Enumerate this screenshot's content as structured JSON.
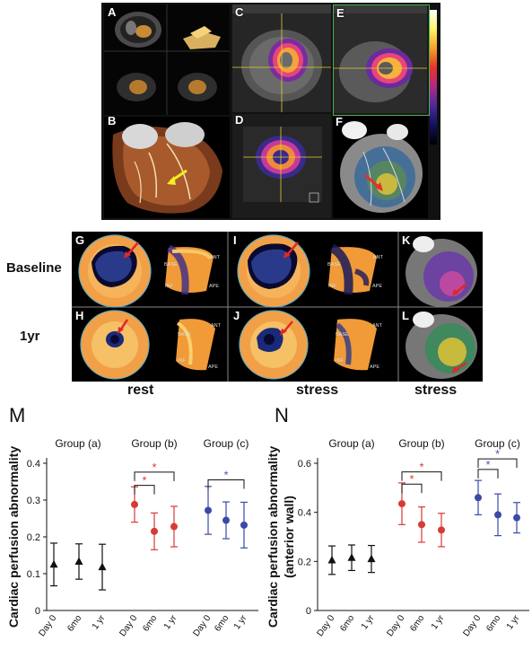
{
  "top_panels": {
    "letters": [
      "A",
      "B",
      "C",
      "D",
      "E",
      "F"
    ]
  },
  "bullseye_panels": {
    "letters": [
      "G",
      "H",
      "I",
      "J",
      "K",
      "L"
    ],
    "row_labels": [
      "Baseline",
      "1yr"
    ],
    "column_labels": [
      "rest",
      "stress",
      "stress"
    ],
    "polar_labels": {
      "base": "BASE",
      "ant": "ANT",
      "inf": "INF",
      "ape": "APE"
    }
  },
  "colors": {
    "group_a": "#111111",
    "group_b": "#d83a35",
    "group_c": "#3a4aa8",
    "significance": "#d83a35",
    "significance_c": "#4a5ab8"
  },
  "chart_data": [
    {
      "panel_letter": "M",
      "type": "scatter",
      "ylabel": "Cardiac perfusion  abnormality",
      "ylim": [
        0,
        0.4
      ],
      "yticks": [
        "0",
        "0.1",
        "0.2",
        "0.3",
        "0.4"
      ],
      "groups": [
        {
          "name": "Group (a)",
          "categories": [
            "Day 0",
            "6mo",
            "1 yr"
          ],
          "values": [
            0.125,
            0.133,
            0.118
          ],
          "errors": [
            0.058,
            0.048,
            0.062
          ],
          "marker": "triangle",
          "color": "#111111"
        },
        {
          "name": "Group (b)",
          "categories": [
            "Day 0",
            "6mo",
            "1 yr"
          ],
          "values": [
            0.288,
            0.215,
            0.228
          ],
          "errors": [
            0.048,
            0.05,
            0.055
          ],
          "marker": "circle",
          "color": "#d83a35"
        },
        {
          "name": "Group (c)",
          "categories": [
            "Day 0",
            "6mo",
            "1 yr"
          ],
          "values": [
            0.272,
            0.245,
            0.232
          ],
          "errors": [
            0.065,
            0.05,
            0.062
          ],
          "marker": "circle",
          "color": "#3a4aa8"
        }
      ],
      "significance": [
        {
          "group": 1,
          "from": 0,
          "to": 1,
          "level": 0.34,
          "label": "*",
          "color": "#d83a35"
        },
        {
          "group": 1,
          "from": 0,
          "to": 2,
          "level": 0.376,
          "label": "*",
          "color": "#d83a35"
        },
        {
          "group": 2,
          "from": 0,
          "to": 2,
          "level": 0.355,
          "label": "*",
          "color": "#4a5ab8"
        }
      ]
    },
    {
      "panel_letter": "N",
      "type": "scatter",
      "ylabel": "Cardiac perfusion  abnormality\n(anterior wall)",
      "ylim": [
        0,
        0.6
      ],
      "yticks": [
        "0",
        "0.2",
        "0.4",
        "0.6"
      ],
      "groups": [
        {
          "name": "Group (a)",
          "categories": [
            "Day 0",
            "6mo",
            "1 yr"
          ],
          "values": [
            0.205,
            0.215,
            0.21
          ],
          "errors": [
            0.058,
            0.052,
            0.055
          ],
          "marker": "triangle",
          "color": "#111111"
        },
        {
          "name": "Group (b)",
          "categories": [
            "Day 0",
            "6mo",
            "1 yr"
          ],
          "values": [
            0.435,
            0.35,
            0.328
          ],
          "errors": [
            0.085,
            0.072,
            0.068
          ],
          "marker": "circle",
          "color": "#d83a35"
        },
        {
          "name": "Group (c)",
          "categories": [
            "Day 0",
            "6mo",
            "1 yr"
          ],
          "values": [
            0.46,
            0.39,
            0.378
          ],
          "errors": [
            0.07,
            0.085,
            0.062
          ],
          "marker": "circle",
          "color": "#3a4aa8"
        }
      ],
      "significance": [
        {
          "group": 1,
          "from": 0,
          "to": 1,
          "level": 0.515,
          "label": "*",
          "color": "#d83a35"
        },
        {
          "group": 1,
          "from": 0,
          "to": 2,
          "level": 0.565,
          "label": "*",
          "color": "#d83a35"
        },
        {
          "group": 2,
          "from": 0,
          "to": 1,
          "level": 0.575,
          "label": "*",
          "color": "#4a5ab8"
        },
        {
          "group": 2,
          "from": 0,
          "to": 2,
          "level": 0.618,
          "label": "*",
          "color": "#4a5ab8"
        }
      ]
    }
  ]
}
